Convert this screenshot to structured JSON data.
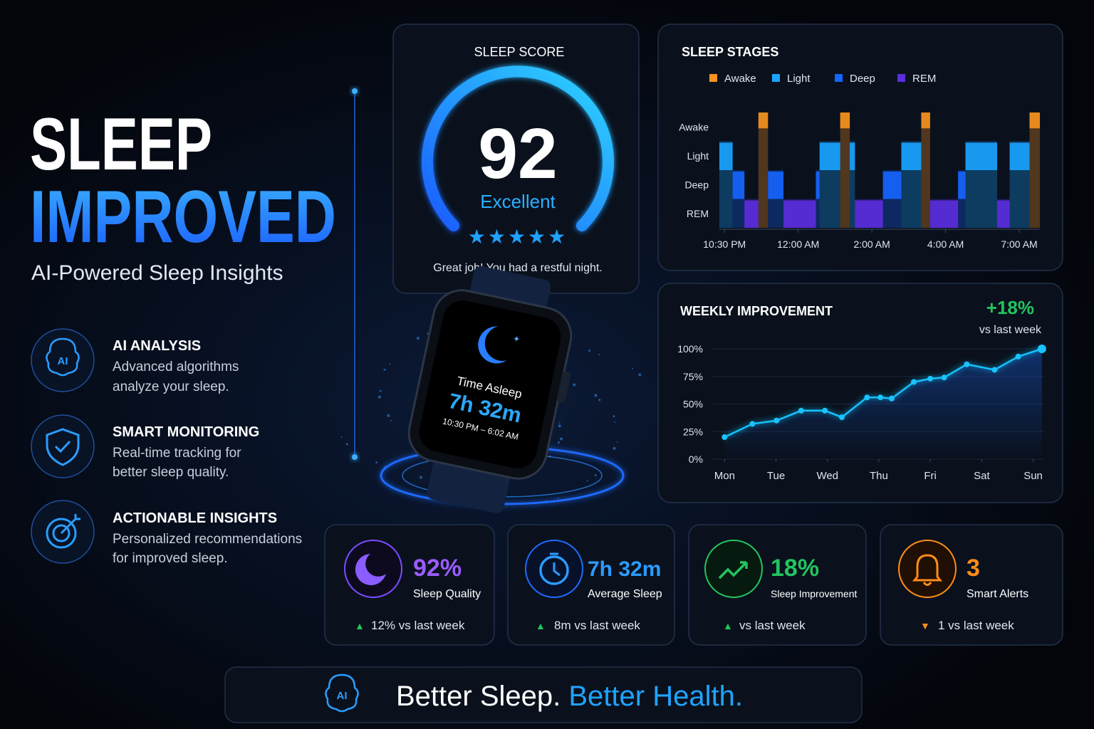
{
  "hero": {
    "title_line1": "SLEEP",
    "title_line2": "IMPROVED",
    "subtitle": "AI-Powered Sleep Insights"
  },
  "features": [
    {
      "icon_label": "AI",
      "title": "AI ANALYSIS",
      "description": [
        "Advanced algorithms",
        "analyze your sleep."
      ]
    },
    {
      "title": "SMART MONITORING",
      "description": [
        "Real-time tracking for",
        "better sleep quality."
      ]
    },
    {
      "title": "ACTIONABLE INSIGHTS",
      "description": [
        "Personalized recommendations",
        "for improved sleep."
      ]
    }
  ],
  "sleep_score": {
    "title": "SLEEP SCORE",
    "score": 92,
    "rating": "Excellent",
    "stars": "★★★★★",
    "message": "Great job! You had a restful night."
  },
  "watch": {
    "label": "Time Asleep",
    "value": "7h 32m",
    "range": "10:30 PM – 6:02 AM"
  },
  "chart_data": [
    {
      "type": "timeline",
      "title": "SLEEP STAGES",
      "stages": [
        "Awake",
        "Light",
        "Deep",
        "REM"
      ],
      "colors": [
        "#f7931e",
        "#1aa3ff",
        "#1565ff",
        "#5b2de0"
      ],
      "bounds": [
        -0.07,
        0.11,
        0.27,
        0.46,
        0.59,
        0.8,
        1.24,
        1.29,
        1.57,
        1.7,
        1.77,
        2.15,
        2.4,
        2.67,
        2.79,
        3.17,
        3.27,
        3.7,
        3.87,
        4.14,
        4.28
      ],
      "values": [
        "Light",
        "Deep",
        "REM",
        "Awake",
        "Deep",
        "REM",
        "Deep",
        "Light",
        "Awake",
        "Light",
        "REM",
        "Deep",
        "Light",
        "Awake",
        "REM",
        "Deep",
        "Light",
        "REM",
        "Light",
        "Awake"
      ],
      "xlim": [
        -0.07,
        4.28
      ],
      "xticks": [
        {
          "value": 0,
          "label": "10:30 PM"
        },
        {
          "value": 1,
          "label": "12:00 AM"
        },
        {
          "value": 2,
          "label": "2:00 AM"
        },
        {
          "value": 3,
          "label": "4:00 AM"
        },
        {
          "value": 4,
          "label": "7:00 AM"
        }
      ]
    },
    {
      "type": "line",
      "title": "WEEKLY IMPROVEMENT",
      "annotation": "+18%",
      "annotation_note": "vs last week",
      "color": "#19c3ff",
      "x": [
        0,
        0.54,
        1.01,
        1.49,
        1.95,
        2.28,
        2.77,
        3.03,
        3.25,
        3.68,
        4.0,
        4.27,
        4.71,
        5.25,
        5.71,
        6.17
      ],
      "values": [
        20,
        32,
        35,
        44,
        44,
        38,
        56,
        56,
        55,
        70,
        73,
        74,
        86,
        81,
        93,
        100
      ],
      "xlim": [
        -0.24,
        6.2
      ],
      "xticks": [
        {
          "value": 0,
          "label": "Mon"
        },
        {
          "value": 1,
          "label": "Tue"
        },
        {
          "value": 2,
          "label": "Wed"
        },
        {
          "value": 3,
          "label": "Thu"
        },
        {
          "value": 4,
          "label": "Fri"
        },
        {
          "value": 5,
          "label": "Sat"
        },
        {
          "value": 6,
          "label": "Sun"
        }
      ],
      "ylim": [
        0,
        100
      ],
      "yticks": [
        {
          "value": 0,
          "label": "0%"
        },
        {
          "value": 25,
          "label": "25%"
        },
        {
          "value": 50,
          "label": "50%"
        },
        {
          "value": 75,
          "label": "75%"
        },
        {
          "value": 100,
          "label": "100%"
        }
      ],
      "grid": true
    }
  ],
  "stats": [
    {
      "value": "92%",
      "label": "Sleep Quality",
      "trend": "▲",
      "change": "12% vs last week"
    },
    {
      "value": "7h 32m",
      "label": "Average Sleep",
      "trend": "▲",
      "change": "8m vs last week"
    },
    {
      "value": "18%",
      "label": "Sleep Improvement",
      "trend": "▲",
      "change": "vs last week"
    },
    {
      "value": "3",
      "label": "Smart Alerts",
      "trend": "▼",
      "change": "1 vs last week"
    }
  ],
  "footer": {
    "icon_label": "AI",
    "text_part1": "Better Sleep.",
    "text_part2": "Better Health."
  }
}
